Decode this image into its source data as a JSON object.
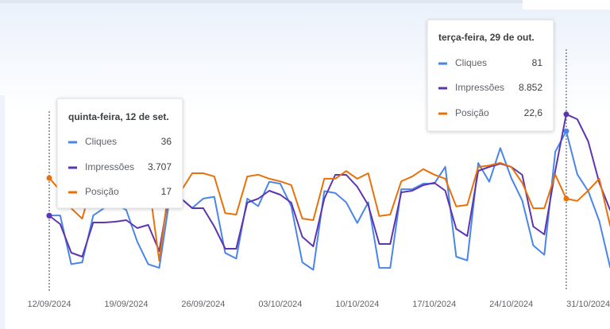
{
  "chart_data": {
    "type": "line",
    "categories": [
      "12/09/2024",
      null,
      null,
      null,
      null,
      null,
      null,
      "19/09/2024",
      null,
      null,
      null,
      null,
      null,
      null,
      "26/09/2024",
      null,
      null,
      null,
      null,
      null,
      null,
      "03/10/2024",
      null,
      null,
      null,
      null,
      null,
      null,
      "10/10/2024",
      null,
      null,
      null,
      null,
      null,
      null,
      "17/10/2024",
      null,
      null,
      null,
      null,
      null,
      null,
      "24/10/2024",
      null,
      null,
      null,
      null,
      null,
      null,
      "31/10/2024",
      null,
      null
    ],
    "series": [
      {
        "name": "Cliques",
        "color": "#4a86e8",
        "ylim": [
          0,
          140
        ],
        "values": [
          36,
          36,
          10,
          11,
          36,
          40,
          42,
          39,
          22,
          10,
          8,
          47,
          45,
          40,
          45,
          46,
          16,
          13,
          45,
          41,
          54,
          53,
          41,
          11,
          7,
          49,
          48,
          43,
          32,
          43,
          8,
          8,
          50,
          50,
          53,
          53,
          62,
          14,
          12,
          64,
          54,
          72,
          56,
          44,
          20,
          15,
          70,
          81,
          58,
          49,
          33,
          8
        ]
      },
      {
        "name": "Impressões",
        "color": "#5e35b1",
        "ylim": [
          300,
          13600
        ],
        "values": [
          3707,
          3282,
          1831,
          1630,
          3363,
          3363,
          3403,
          3484,
          3081,
          3242,
          1912,
          5177,
          4572,
          4088,
          4088,
          3162,
          2033,
          2033,
          4371,
          4572,
          4975,
          4774,
          4371,
          2638,
          2154,
          4572,
          5781,
          5781,
          5177,
          4250,
          2275,
          2275,
          4895,
          4975,
          5257,
          5378,
          4975,
          3041,
          2678,
          5983,
          6184,
          6345,
          6184,
          5781,
          3162,
          2758,
          5983,
          8852,
          8602,
          7474,
          5378,
          3968
        ],
        "value_labels": [
          "3.707",
          null,
          null,
          null,
          null,
          null,
          null,
          null,
          null,
          null,
          null,
          null,
          null,
          null,
          null,
          null,
          null,
          null,
          null,
          null,
          null,
          null,
          null,
          null,
          null,
          null,
          null,
          null,
          null,
          null,
          null,
          null,
          null,
          null,
          null,
          null,
          null,
          null,
          null,
          null,
          null,
          null,
          null,
          null,
          null,
          null,
          null,
          "8.852",
          null,
          null,
          null,
          null
        ]
      },
      {
        "name": "Posição",
        "color": "#e8710a",
        "ylim": [
          45.4,
          -25.6
        ],
        "values": [
          17,
          20.4,
          25.2,
          28.0,
          17.2,
          17.2,
          16.6,
          16.6,
          16.1,
          17.2,
          39.4,
          16.6,
          20.4,
          15.7,
          15.7,
          16.6,
          26.5,
          26.9,
          16.6,
          16.1,
          17.2,
          17.9,
          18.9,
          28.0,
          28.4,
          17.2,
          17.2,
          15.1,
          17.2,
          15.7,
          27.3,
          26.9,
          17.9,
          16.6,
          14.6,
          16.1,
          17.2,
          24.7,
          24.3,
          14.0,
          13.6,
          12.9,
          14.0,
          18.3,
          25.2,
          25.2,
          16.1,
          22.6,
          23.2,
          20.4,
          17.2,
          30.1
        ],
        "value_labels": [
          null,
          null,
          null,
          null,
          null,
          null,
          null,
          null,
          null,
          null,
          null,
          null,
          null,
          null,
          null,
          null,
          null,
          null,
          null,
          null,
          null,
          null,
          null,
          null,
          null,
          null,
          null,
          null,
          null,
          null,
          null,
          null,
          null,
          null,
          null,
          null,
          null,
          null,
          null,
          null,
          null,
          null,
          null,
          null,
          null,
          null,
          null,
          "22,6",
          null,
          null,
          null,
          null
        ]
      }
    ],
    "tooltips": [
      "quinta-feira, 12 de set.",
      "terça-feira, 29 de out."
    ]
  }
}
